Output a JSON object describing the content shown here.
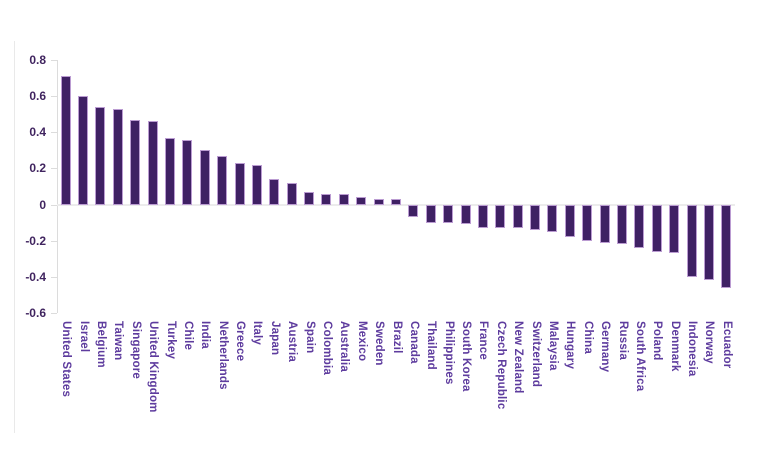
{
  "chart_data": {
    "type": "bar",
    "title": "",
    "xlabel": "",
    "ylabel": "",
    "categories": [
      "United States",
      "Israel",
      "Belgium",
      "Taiwan",
      "Singapore",
      "United Kingdom",
      "Turkey",
      "Chile",
      "India",
      "Netherlands",
      "Greece",
      "Italy",
      "Japan",
      "Austria",
      "Spain",
      "Colombia",
      "Australia",
      "Mexico",
      "Sweden",
      "Brazil",
      "Canada",
      "Thailand",
      "Philippines",
      "South Korea",
      "France",
      "Czech Republic",
      "New Zealand",
      "Switzerland",
      "Malaysia",
      "Hungary",
      "China",
      "Germany",
      "Russia",
      "South Africa",
      "Poland",
      "Denmark",
      "Indonesia",
      "Norway",
      "Ecuador"
    ],
    "values": [
      0.71,
      0.6,
      0.54,
      0.53,
      0.47,
      0.46,
      0.37,
      0.36,
      0.3,
      0.27,
      0.23,
      0.22,
      0.14,
      0.12,
      0.07,
      0.06,
      0.06,
      0.04,
      0.03,
      0.03,
      -0.07,
      -0.1,
      -0.1,
      -0.11,
      -0.13,
      -0.13,
      -0.13,
      -0.14,
      -0.15,
      -0.18,
      -0.2,
      -0.21,
      -0.22,
      -0.24,
      -0.26,
      -0.27,
      -0.4,
      -0.42,
      -0.46
    ],
    "ylim": [
      -0.6,
      0.8
    ],
    "ytick_labels": [
      "0.8",
      "0.6",
      "0.4",
      "0.2",
      "0",
      "-0.2",
      "-0.4",
      "-0.6"
    ],
    "ytick_values": [
      0.8,
      0.6,
      0.4,
      0.2,
      0,
      -0.2,
      -0.4,
      -0.6
    ],
    "grid": "zero-line-only",
    "legend_position": "none",
    "xlabel_rotation_deg": 90,
    "colors": {
      "bar_fill": "#3f2164",
      "bar_border": "#bb9cd2",
      "tick_label": "#40245f",
      "category_label": "#5e3c9e",
      "axis_line": "#dcdcdc",
      "zero_line": "#ececec",
      "background": "#ffffff"
    }
  }
}
